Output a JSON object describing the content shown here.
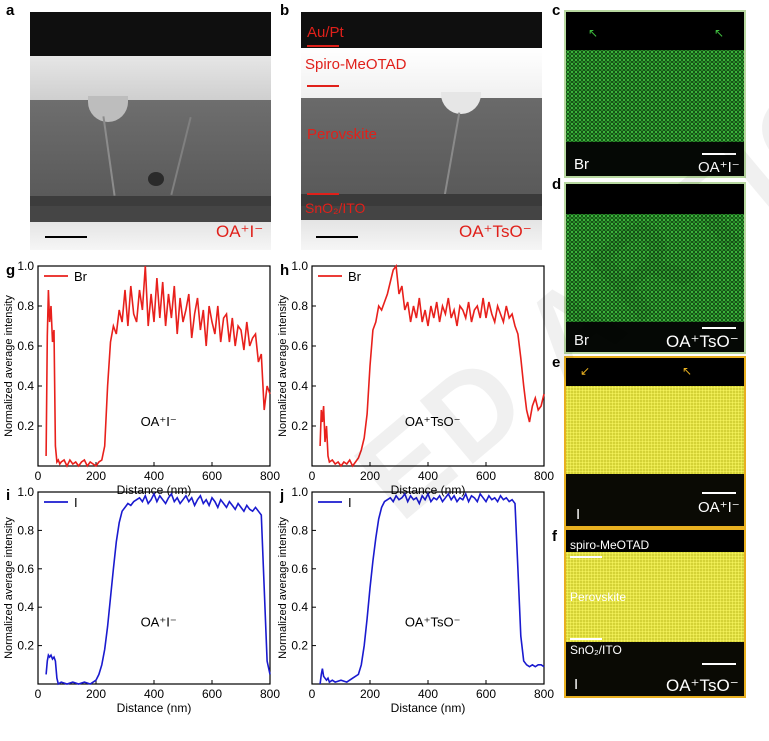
{
  "panel_labels": {
    "a": "a",
    "b": "b",
    "c": "c",
    "d": "d",
    "e": "e",
    "f": "f",
    "g": "g",
    "h": "h",
    "i": "i",
    "j": "j"
  },
  "tem": {
    "a_sample": "OA⁺I⁻",
    "b_layer_aupt": "Au/Pt",
    "b_layer_spiro": "Spiro-MeOTAD",
    "b_layer_perov": "Perovskite",
    "b_layer_sno2": "SnO₂/ITO",
    "b_sample": "OA⁺TsO⁻"
  },
  "eds": {
    "c_element": "Br",
    "c_sample": "OA⁺I⁻",
    "d_element": "Br",
    "d_sample": "OA⁺TsO⁻",
    "e_element": "I",
    "e_sample": "OA⁺I⁻",
    "f_element": "I",
    "f_sample": "OA⁺TsO⁻",
    "f_layer_spiro": "spiro-MeOTAD",
    "f_layer_perov": "Perovskite",
    "f_layer_sno2": "SnO₂/ITO"
  },
  "colors": {
    "br_line": "#e8201c",
    "i_line": "#1a1acf",
    "br_map": "#3fbf3f",
    "i_map": "#e8e636",
    "frame_green": "#b8d8a0",
    "frame_gold": "#e8b020"
  },
  "watermark": "ED ARTICLE PREVIEW",
  "chart_data": [
    {
      "id": "g",
      "type": "line",
      "series_name": "Br",
      "annotation": "OA⁺I⁻",
      "xlabel": "Distance (nm)",
      "ylabel": "Normalized average intensity",
      "xlim": [
        0,
        800
      ],
      "ylim": [
        0,
        1.0
      ],
      "xticks": [
        0,
        200,
        400,
        600,
        800
      ],
      "yticks": [
        0.2,
        0.4,
        0.6,
        0.8,
        1.0
      ],
      "x": [
        28,
        32,
        36,
        40,
        45,
        50,
        55,
        60,
        65,
        70,
        75,
        80,
        90,
        100,
        110,
        120,
        130,
        140,
        150,
        160,
        170,
        180,
        190,
        200,
        210,
        220,
        230,
        240,
        250,
        260,
        270,
        280,
        290,
        300,
        310,
        320,
        330,
        340,
        350,
        360,
        370,
        380,
        390,
        400,
        410,
        420,
        430,
        440,
        450,
        460,
        470,
        480,
        490,
        500,
        510,
        520,
        530,
        540,
        550,
        560,
        570,
        580,
        590,
        600,
        610,
        620,
        630,
        640,
        650,
        660,
        670,
        680,
        690,
        700,
        710,
        720,
        730,
        740,
        750,
        760,
        770,
        780,
        790,
        800
      ],
      "y": [
        0.05,
        0.65,
        0.88,
        0.72,
        0.8,
        0.62,
        0.68,
        0.1,
        0.02,
        0.03,
        0.01,
        0.02,
        0.03,
        0.0,
        0.03,
        0.01,
        0.02,
        0.0,
        0.02,
        0.03,
        0.0,
        0.02,
        0.01,
        0.0,
        0.02,
        0.03,
        0.1,
        0.4,
        0.62,
        0.7,
        0.66,
        0.78,
        0.72,
        0.88,
        0.7,
        0.9,
        0.76,
        0.72,
        0.88,
        0.78,
        1.0,
        0.7,
        0.86,
        0.72,
        0.94,
        0.74,
        0.92,
        0.7,
        0.86,
        0.74,
        0.9,
        0.66,
        0.84,
        0.72,
        0.78,
        0.86,
        0.64,
        0.76,
        0.84,
        0.68,
        0.78,
        0.6,
        0.8,
        0.72,
        0.66,
        0.8,
        0.62,
        0.74,
        0.76,
        0.62,
        0.74,
        0.6,
        0.7,
        0.68,
        0.58,
        0.72,
        0.6,
        0.64,
        0.66,
        0.52,
        0.56,
        0.28,
        0.4,
        0.36
      ]
    },
    {
      "id": "h",
      "type": "line",
      "series_name": "Br",
      "annotation": "OA⁺TsO⁻",
      "xlabel": "Distance (nm)",
      "ylabel": "Normalized average intensity",
      "xlim": [
        0,
        800
      ],
      "ylim": [
        0,
        1.0
      ],
      "xticks": [
        0,
        200,
        400,
        600,
        800
      ],
      "yticks": [
        0.2,
        0.4,
        0.6,
        0.8,
        1.0
      ],
      "x": [
        28,
        32,
        36,
        40,
        45,
        50,
        55,
        60,
        70,
        80,
        90,
        100,
        110,
        120,
        130,
        140,
        150,
        160,
        170,
        180,
        190,
        200,
        210,
        220,
        230,
        240,
        250,
        260,
        270,
        280,
        290,
        300,
        310,
        320,
        330,
        340,
        350,
        360,
        370,
        380,
        390,
        400,
        410,
        420,
        430,
        440,
        450,
        460,
        470,
        480,
        490,
        500,
        510,
        520,
        530,
        540,
        550,
        560,
        570,
        580,
        590,
        600,
        610,
        620,
        630,
        640,
        650,
        660,
        670,
        680,
        690,
        700,
        710,
        720,
        730,
        740,
        750,
        760,
        770,
        780,
        790,
        800
      ],
      "y": [
        0.1,
        0.28,
        0.22,
        0.3,
        0.12,
        0.2,
        0.05,
        0.02,
        0.03,
        0.01,
        0.02,
        0.0,
        0.02,
        0.01,
        0.03,
        0.0,
        0.02,
        0.04,
        0.08,
        0.14,
        0.26,
        0.5,
        0.68,
        0.72,
        0.8,
        0.78,
        0.82,
        0.86,
        0.92,
        0.98,
        1.0,
        0.86,
        0.9,
        0.78,
        0.82,
        0.72,
        0.8,
        0.74,
        0.84,
        0.72,
        0.78,
        0.7,
        0.8,
        0.74,
        0.82,
        0.72,
        0.8,
        0.76,
        0.84,
        0.74,
        0.78,
        0.7,
        0.8,
        0.78,
        0.74,
        0.82,
        0.72,
        0.78,
        0.8,
        0.74,
        0.84,
        0.74,
        0.82,
        0.76,
        0.72,
        0.8,
        0.76,
        0.72,
        0.8,
        0.74,
        0.76,
        0.7,
        0.66,
        0.54,
        0.4,
        0.28,
        0.22,
        0.3,
        0.34,
        0.28,
        0.3,
        0.36
      ]
    },
    {
      "id": "i",
      "type": "line",
      "series_name": "I",
      "annotation": "OA⁺I⁻",
      "xlabel": "Distance (nm)",
      "ylabel": "Normalized average intensity",
      "xlim": [
        0,
        800
      ],
      "ylim": [
        0,
        1.0
      ],
      "xticks": [
        0,
        200,
        400,
        600,
        800
      ],
      "yticks": [
        0.2,
        0.4,
        0.6,
        0.8,
        1.0
      ],
      "x": [
        28,
        32,
        36,
        40,
        45,
        50,
        55,
        60,
        65,
        70,
        80,
        100,
        120,
        140,
        160,
        180,
        200,
        210,
        220,
        230,
        240,
        250,
        260,
        270,
        280,
        290,
        300,
        310,
        320,
        330,
        340,
        350,
        360,
        370,
        380,
        390,
        400,
        410,
        420,
        430,
        440,
        450,
        460,
        470,
        480,
        490,
        500,
        510,
        520,
        530,
        540,
        550,
        560,
        570,
        580,
        590,
        600,
        610,
        620,
        630,
        640,
        650,
        660,
        670,
        680,
        690,
        700,
        710,
        720,
        730,
        740,
        750,
        760,
        770,
        780,
        790,
        800
      ],
      "y": [
        0.05,
        0.12,
        0.15,
        0.14,
        0.15,
        0.13,
        0.14,
        0.12,
        0.03,
        0.0,
        0.01,
        0.0,
        0.01,
        0.0,
        0.01,
        0.0,
        0.02,
        0.05,
        0.1,
        0.18,
        0.3,
        0.45,
        0.6,
        0.74,
        0.84,
        0.9,
        0.92,
        0.94,
        0.93,
        0.95,
        0.96,
        0.97,
        0.95,
        0.98,
        0.94,
        0.96,
        0.99,
        0.95,
        0.98,
        0.96,
        0.94,
        0.97,
        0.99,
        0.95,
        0.97,
        0.94,
        0.96,
        0.98,
        0.95,
        0.97,
        0.93,
        0.96,
        0.98,
        0.94,
        0.96,
        0.93,
        0.97,
        0.95,
        0.92,
        0.96,
        0.94,
        0.92,
        0.95,
        0.93,
        0.91,
        0.94,
        0.92,
        0.9,
        0.93,
        0.91,
        0.9,
        0.92,
        0.9,
        0.88,
        0.5,
        0.12,
        0.05
      ]
    },
    {
      "id": "j",
      "type": "line",
      "series_name": "I",
      "annotation": "OA⁺TsO⁻",
      "xlabel": "Distance (nm)",
      "ylabel": "Normalized average intensity",
      "xlim": [
        0,
        800
      ],
      "ylim": [
        0,
        1.0
      ],
      "xticks": [
        0,
        200,
        400,
        600,
        800
      ],
      "yticks": [
        0.2,
        0.4,
        0.6,
        0.8,
        1.0
      ],
      "x": [
        28,
        32,
        36,
        40,
        45,
        50,
        55,
        60,
        70,
        80,
        100,
        120,
        140,
        160,
        170,
        180,
        190,
        200,
        210,
        220,
        230,
        240,
        250,
        260,
        270,
        280,
        290,
        300,
        310,
        320,
        330,
        340,
        350,
        360,
        370,
        380,
        390,
        400,
        410,
        420,
        430,
        440,
        450,
        460,
        470,
        480,
        490,
        500,
        510,
        520,
        530,
        540,
        550,
        560,
        570,
        580,
        590,
        600,
        610,
        620,
        630,
        640,
        650,
        660,
        670,
        680,
        690,
        700,
        710,
        720,
        730,
        740,
        750,
        760,
        770,
        780,
        790,
        800
      ],
      "y": [
        0.0,
        0.05,
        0.08,
        0.04,
        0.03,
        0.02,
        0.03,
        0.01,
        0.02,
        0.01,
        0.02,
        0.01,
        0.03,
        0.05,
        0.1,
        0.2,
        0.34,
        0.5,
        0.64,
        0.76,
        0.86,
        0.92,
        0.95,
        0.96,
        0.97,
        0.95,
        0.98,
        0.96,
        0.97,
        0.99,
        0.95,
        0.98,
        0.96,
        0.97,
        0.94,
        0.98,
        0.96,
        0.99,
        0.95,
        0.97,
        0.96,
        0.98,
        0.95,
        0.97,
        0.99,
        0.96,
        0.98,
        0.95,
        0.97,
        0.96,
        0.99,
        0.95,
        0.98,
        0.97,
        0.95,
        0.99,
        0.97,
        0.95,
        0.98,
        0.96,
        0.97,
        0.95,
        0.98,
        0.96,
        0.97,
        0.95,
        0.96,
        0.94,
        0.6,
        0.25,
        0.12,
        0.1,
        0.09,
        0.1,
        0.09,
        0.1,
        0.1,
        0.09
      ]
    }
  ]
}
